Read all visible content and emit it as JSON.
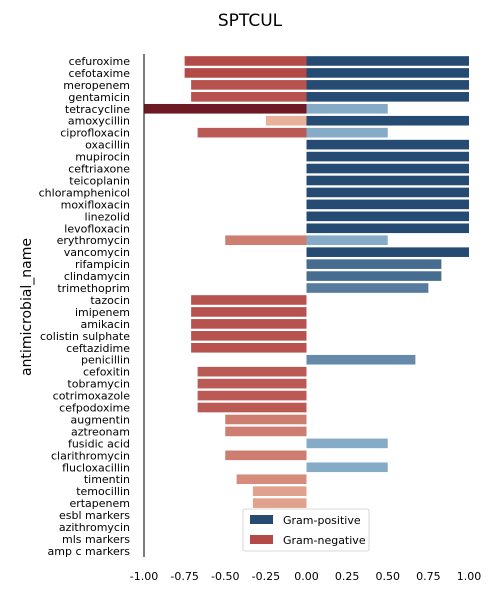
{
  "chart_data": {
    "type": "bar",
    "orientation": "horizontal",
    "title": "SPTCUL",
    "xlabel": "",
    "ylabel": "antimicrobial_name",
    "xlim": [
      -1.0,
      1.0
    ],
    "xticks": [
      "-1.00",
      "-0.75",
      "-0.50",
      "-0.25",
      "0.00",
      "0.25",
      "0.50",
      "0.75",
      "1.00"
    ],
    "grid": false,
    "legend_position": "lower center",
    "categories": [
      "cefuroxime",
      "cefotaxime",
      "meropenem",
      "gentamicin",
      "tetracycline",
      "amoxycillin",
      "ciprofloxacin",
      "oxacillin",
      "mupirocin",
      "ceftriaxone",
      "teicoplanin",
      "chloramphenicol",
      "moxifloxacin",
      "linezolid",
      "levofloxacin",
      "erythromycin",
      "vancomycin",
      "rifampicin",
      "clindamycin",
      "trimethoprim",
      "tazocin",
      "imipenem",
      "amikacin",
      "colistin sulphate",
      "ceftazidime",
      "penicillin",
      "cefoxitin",
      "tobramycin",
      "cotrimoxazole",
      "cefpodoxime",
      "augmentin",
      "aztreonam",
      "fusidic acid",
      "clarithromycin",
      "flucloxacillin",
      "timentin",
      "temocillin",
      "ertapenem",
      "esbl markers",
      "azithromycin",
      "mls markers",
      "amp c markers"
    ],
    "series": [
      {
        "name": "Gram-positive",
        "values": [
          1.0,
          1.0,
          1.0,
          1.0,
          0.5,
          1.0,
          0.5,
          1.0,
          1.0,
          1.0,
          1.0,
          1.0,
          1.0,
          1.0,
          1.0,
          0.5,
          1.0,
          0.83,
          0.83,
          0.75,
          null,
          null,
          null,
          null,
          null,
          0.67,
          null,
          null,
          null,
          null,
          null,
          null,
          0.5,
          null,
          0.5,
          null,
          null,
          null,
          null,
          null,
          null,
          null
        ]
      },
      {
        "name": "Gram-negative",
        "values": [
          -0.75,
          -0.75,
          -0.71,
          -0.71,
          -1.0,
          -0.25,
          -0.67,
          null,
          null,
          null,
          null,
          null,
          null,
          null,
          null,
          -0.5,
          null,
          null,
          null,
          null,
          -0.71,
          -0.71,
          -0.71,
          -0.71,
          -0.71,
          null,
          -0.67,
          -0.67,
          -0.67,
          -0.67,
          -0.5,
          -0.5,
          null,
          -0.5,
          null,
          -0.43,
          -0.33,
          -0.33,
          null,
          null,
          null,
          null
        ]
      }
    ]
  }
}
